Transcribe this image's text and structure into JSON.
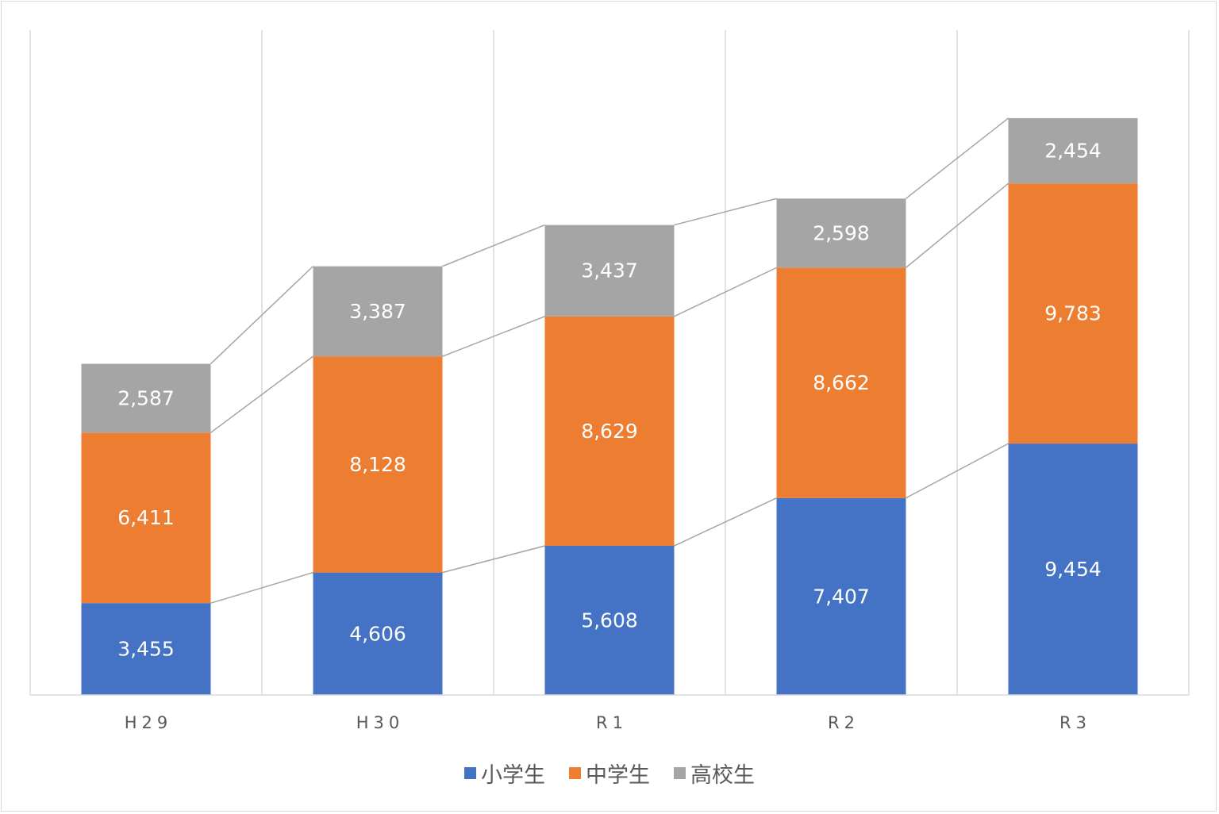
{
  "chart_data": {
    "type": "bar",
    "stacked": true,
    "categories": [
      "H29",
      "H30",
      "R1",
      "R2",
      "R3"
    ],
    "series": [
      {
        "name": "小学生",
        "color": "#4472C4",
        "values": [
          3455,
          4606,
          5608,
          7407,
          9454
        ]
      },
      {
        "name": "中学生",
        "color": "#ED7D31",
        "values": [
          6411,
          8128,
          8629,
          8662,
          9783
        ]
      },
      {
        "name": "高校生",
        "color": "#A5A5A5",
        "values": [
          2587,
          3387,
          3437,
          2598,
          2454
        ]
      }
    ],
    "data_labels": true,
    "series_lines": true,
    "ylim": [
      0,
      25000
    ],
    "y_axis_visible": false,
    "grid": "vertical category separators",
    "legend": "bottom",
    "title": "",
    "xlabel": "",
    "ylabel": ""
  }
}
